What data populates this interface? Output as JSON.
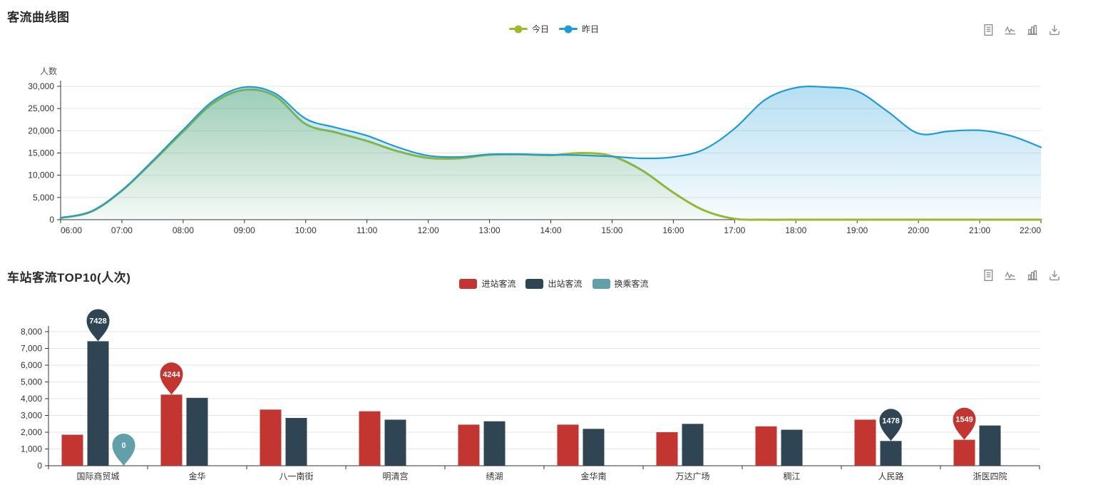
{
  "page": {
    "toolbox_icons": [
      "data-view-icon",
      "line-switch-icon",
      "bar-switch-icon",
      "download-icon"
    ]
  },
  "chart_data": [
    {
      "type": "line",
      "title": "客流曲线图",
      "xlabel": "",
      "ylabel": "人数",
      "ylim": [
        0,
        30000
      ],
      "yticks": [
        0,
        5000,
        10000,
        15000,
        20000,
        25000,
        30000
      ],
      "grid": true,
      "smooth": true,
      "area": true,
      "legend_position": "top-center",
      "x_tick_labels": [
        "06:00",
        "07:00",
        "08:00",
        "09:00",
        "10:00",
        "11:00",
        "12:00",
        "13:00",
        "14:00",
        "15:00",
        "16:00",
        "17:00",
        "18:00",
        "19:00",
        "20:00",
        "21:00",
        "22:00"
      ],
      "x": [
        "06:00",
        "06:30",
        "07:00",
        "07:30",
        "08:00",
        "08:30",
        "09:00",
        "09:30",
        "10:00",
        "10:30",
        "11:00",
        "11:30",
        "12:00",
        "12:30",
        "13:00",
        "13:30",
        "14:00",
        "14:30",
        "15:00",
        "15:30",
        "16:00",
        "16:30",
        "17:00",
        "17:30",
        "18:00",
        "18:30",
        "19:00",
        "19:30",
        "20:00",
        "20:30",
        "21:00",
        "21:30",
        "22:00"
      ],
      "series": [
        {
          "name": "今日",
          "color": "#9abb2a",
          "values": [
            400,
            1800,
            6500,
            13000,
            19800,
            26300,
            29200,
            27800,
            21500,
            19600,
            17700,
            15400,
            13900,
            13800,
            14600,
            14700,
            14500,
            15000,
            14300,
            11000,
            6100,
            2100,
            200,
            0,
            0,
            0,
            0,
            0,
            0,
            0,
            0,
            0,
            0
          ]
        },
        {
          "name": "昨日",
          "color": "#1e9ad8",
          "values": [
            400,
            1900,
            6600,
            13200,
            20200,
            26800,
            29800,
            28400,
            22700,
            20700,
            18900,
            16300,
            14400,
            14100,
            14700,
            14700,
            14600,
            14500,
            14200,
            13800,
            14100,
            15800,
            20500,
            27000,
            29700,
            29800,
            28900,
            24300,
            19400,
            19900,
            20100,
            18900,
            16300
          ]
        }
      ]
    },
    {
      "type": "bar",
      "title": "车站客流TOP10(人次)",
      "xlabel": "",
      "ylabel": "",
      "ylim": [
        0,
        8000
      ],
      "yticks": [
        0,
        1000,
        2000,
        3000,
        4000,
        5000,
        6000,
        7000,
        8000
      ],
      "grid": true,
      "legend_position": "top-center",
      "categories": [
        "国际商贸城",
        "金华",
        "八一南街",
        "明清宫",
        "绣湖",
        "金华南",
        "万达广场",
        "稠江",
        "人民路",
        "浙医四院"
      ],
      "series": [
        {
          "name": "进站客流",
          "color": "#c23531",
          "values": [
            1850,
            4244,
            3350,
            3250,
            2450,
            2450,
            2000,
            2350,
            2750,
            1549
          ]
        },
        {
          "name": "出站客流",
          "color": "#2f4554",
          "values": [
            7428,
            4050,
            2850,
            2750,
            2650,
            2200,
            2500,
            2150,
            1478,
            2400
          ]
        },
        {
          "name": "换乘客流",
          "color": "#61a0a8",
          "values": [
            0,
            0,
            0,
            0,
            0,
            0,
            0,
            0,
            0,
            0
          ]
        }
      ],
      "markers": [
        {
          "series": 1,
          "category": 0,
          "value": 7428
        },
        {
          "series": 2,
          "category": 0,
          "value": 0
        },
        {
          "series": 0,
          "category": 1,
          "value": 4244
        },
        {
          "series": 1,
          "category": 8,
          "value": 1478
        },
        {
          "series": 0,
          "category": 9,
          "value": 1549
        }
      ]
    }
  ]
}
